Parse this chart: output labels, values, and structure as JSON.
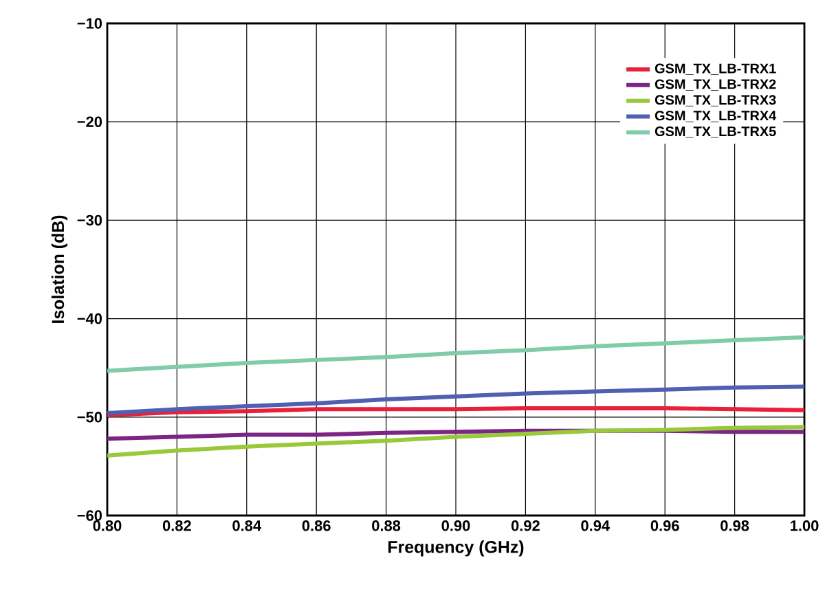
{
  "chart_data": {
    "type": "line",
    "xlabel": "Frequency (GHz)",
    "ylabel": "Isolation (dB)",
    "x": [
      0.8,
      0.82,
      0.84,
      0.86,
      0.88,
      0.9,
      0.92,
      0.94,
      0.96,
      0.98,
      1.0
    ],
    "series": [
      {
        "name": "GSM_TX_LB-TRX1",
        "color": "#e8203a",
        "values": [
          -49.8,
          -49.5,
          -49.4,
          -49.2,
          -49.2,
          -49.2,
          -49.1,
          -49.1,
          -49.1,
          -49.2,
          -49.3
        ]
      },
      {
        "name": "GSM_TX_LB-TRX2",
        "color": "#7b2584",
        "values": [
          -52.2,
          -52.0,
          -51.8,
          -51.8,
          -51.6,
          -51.5,
          -51.4,
          -51.4,
          -51.4,
          -51.5,
          -51.5
        ]
      },
      {
        "name": "GSM_TX_LB-TRX3",
        "color": "#99c93a",
        "values": [
          -53.9,
          -53.4,
          -53.0,
          -52.7,
          -52.4,
          -52.0,
          -51.7,
          -51.4,
          -51.3,
          -51.1,
          -51.0
        ]
      },
      {
        "name": "GSM_TX_LB-TRX4",
        "color": "#5060b0",
        "values": [
          -49.6,
          -49.2,
          -48.9,
          -48.6,
          -48.2,
          -47.9,
          -47.6,
          -47.4,
          -47.2,
          -47.0,
          -46.9
        ]
      },
      {
        "name": "GSM_TX_LB-TRX5",
        "color": "#80cca8",
        "values": [
          -45.3,
          -44.9,
          -44.5,
          -44.2,
          -43.9,
          -43.5,
          -43.2,
          -42.8,
          -42.5,
          -42.2,
          -41.9
        ]
      }
    ],
    "xlim": [
      0.8,
      1.0
    ],
    "xticks": [
      {
        "value": 0.8,
        "label": "0.80"
      },
      {
        "value": 0.82,
        "label": "0.82"
      },
      {
        "value": 0.84,
        "label": "0.84"
      },
      {
        "value": 0.86,
        "label": "0.86"
      },
      {
        "value": 0.88,
        "label": "0.88"
      },
      {
        "value": 0.9,
        "label": "0.90"
      },
      {
        "value": 0.92,
        "label": "0.92"
      },
      {
        "value": 0.94,
        "label": "0.94"
      },
      {
        "value": 0.96,
        "label": "0.96"
      },
      {
        "value": 0.98,
        "label": "0.98"
      },
      {
        "value": 1.0,
        "label": "1.00"
      }
    ],
    "ylim": [
      -60,
      -10
    ],
    "yticks": [
      {
        "value": -60,
        "label": "−60"
      },
      {
        "value": -50,
        "label": "−50"
      },
      {
        "value": -40,
        "label": "−40"
      },
      {
        "value": -30,
        "label": "−30"
      },
      {
        "value": -20,
        "label": "−20"
      },
      {
        "value": -10,
        "label": "−10"
      }
    ],
    "grid": true,
    "legend": "top right",
    "marker": "none",
    "line_style": "solid"
  }
}
